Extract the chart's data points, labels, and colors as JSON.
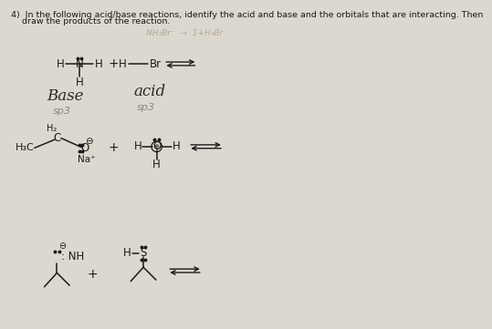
{
  "bg_color": "#ddd8cf",
  "title_line1": "4)  In the following acid/base reactions, identify the acid and base and the orbitals that are interacting. Then",
  "title_line2": "    draw the products of the reaction.",
  "text_color": "#1a1a1a",
  "handwritten_color": "#2a2a2a",
  "pencil_color": "#888888",
  "faint_color": "#aaaaaa"
}
